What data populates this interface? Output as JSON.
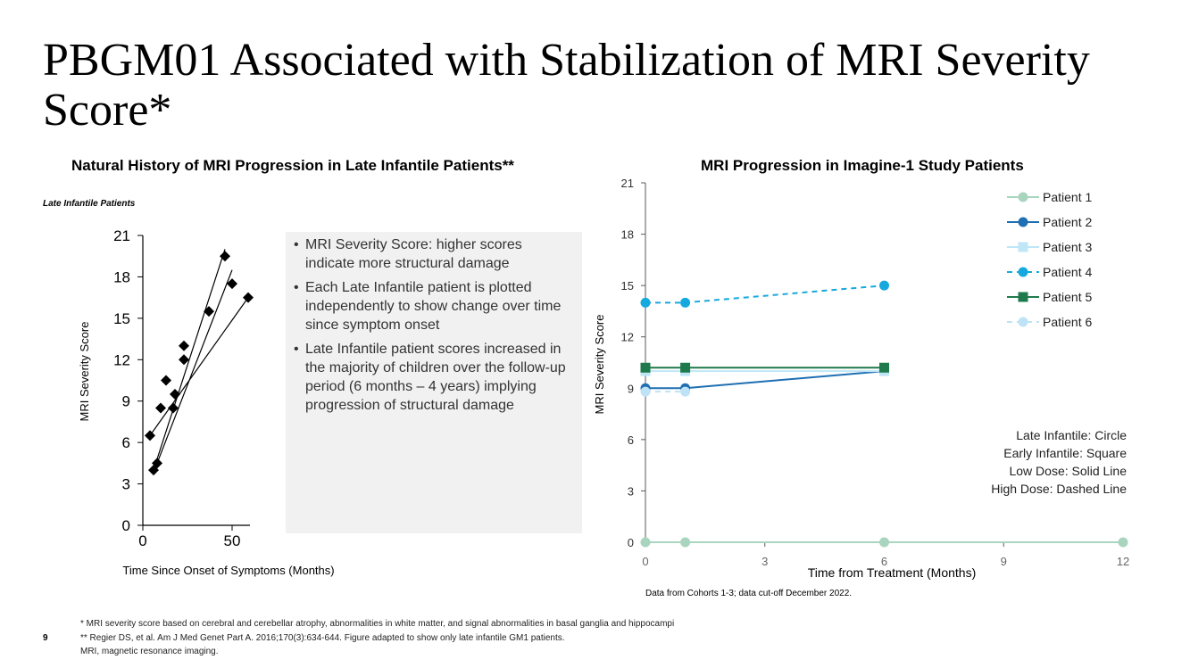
{
  "slide": {
    "title": "PBGM01 Associated with Stabilization of MRI Severity Score*",
    "page_number": "9"
  },
  "left_panel": {
    "title": "Natural History of MRI Progression in Late Infantile Patients**",
    "subtitle": "Late Infantile Patients"
  },
  "bullets": [
    "MRI Severity Score: higher scores indicate more structural damage",
    "Each Late Infantile patient is plotted independently to show change over time since symptom onset",
    "Late Infantile patient scores increased in the majority of children over the follow-up period (6 months – 4 years) implying progression of structural damage"
  ],
  "right_panel": {
    "title": "MRI Progression in Imagine-1 Study Patients",
    "data_note": "Data from Cohorts 1-3; data cut-off December 2022."
  },
  "footnotes": [
    "* MRI severity score based on cerebral and cerebellar atrophy, abnormalities in white matter, and signal abnormalities in basal ganglia and hippocampi",
    "** Regier DS, et al. Am J Med Genet Part A. 2016;170(3):634-644. Figure adapted to show only late infantile GM1 patients.",
    "MRI, magnetic resonance imaging."
  ],
  "chart_data": [
    {
      "type": "scatter",
      "title": "Natural History of MRI Progression in Late Infantile Patients**",
      "xlabel": "Time Since Onset of Symptoms (Months)",
      "ylabel": "MRI Severity Score",
      "xlim": [
        0,
        60
      ],
      "ylim": [
        0,
        21
      ],
      "xticks": [
        0,
        50
      ],
      "yticks": [
        0,
        3,
        6,
        9,
        12,
        15,
        18,
        21
      ],
      "points": [
        {
          "x": 4,
          "y": 6.5
        },
        {
          "x": 6,
          "y": 4
        },
        {
          "x": 8,
          "y": 4.5
        },
        {
          "x": 10,
          "y": 8.5
        },
        {
          "x": 13,
          "y": 10.5
        },
        {
          "x": 17,
          "y": 8.5
        },
        {
          "x": 18,
          "y": 9.5
        },
        {
          "x": 23,
          "y": 12
        },
        {
          "x": 23,
          "y": 13
        },
        {
          "x": 37,
          "y": 15.5
        },
        {
          "x": 46,
          "y": 19.5
        },
        {
          "x": 50,
          "y": 17.5
        },
        {
          "x": 59,
          "y": 16.5
        }
      ],
      "trend_lines": [
        {
          "x1": 4,
          "y1": 6.5,
          "x2": 59,
          "y2": 16.5
        },
        {
          "x1": 6,
          "y1": 4,
          "x2": 46,
          "y2": 20
        },
        {
          "x1": 8,
          "y1": 4.5,
          "x2": 50,
          "y2": 18.5
        }
      ]
    },
    {
      "type": "line",
      "title": "MRI Progression in Imagine-1 Study Patients",
      "xlabel": "Time from Treatment (Months)",
      "ylabel": "MRI Severity Score",
      "xlim": [
        0,
        12
      ],
      "ylim": [
        0,
        21
      ],
      "xticks": [
        0,
        3,
        6,
        9,
        12
      ],
      "yticks": [
        0,
        3,
        6,
        9,
        12,
        15,
        18,
        21
      ],
      "series": [
        {
          "name": "Patient 1",
          "color": "#a9d5bf",
          "marker": "circle",
          "dash": false,
          "x": [
            0,
            1,
            6,
            12
          ],
          "y": [
            0,
            0,
            0,
            0
          ]
        },
        {
          "name": "Patient 2",
          "color": "#1f6fb2",
          "marker": "circle",
          "dash": false,
          "x": [
            0,
            1,
            6
          ],
          "y": [
            9,
            9,
            10
          ]
        },
        {
          "name": "Patient 3",
          "color": "#bfe6f7",
          "marker": "square",
          "dash": false,
          "x": [
            0,
            1,
            6
          ],
          "y": [
            10,
            10,
            10
          ]
        },
        {
          "name": "Patient 4",
          "color": "#16a9dd",
          "marker": "circle",
          "dash": true,
          "x": [
            0,
            1,
            6
          ],
          "y": [
            14,
            14,
            15
          ]
        },
        {
          "name": "Patient 5",
          "color": "#1e7a4c",
          "marker": "square",
          "dash": false,
          "x": [
            0,
            1,
            6
          ],
          "y": [
            10.2,
            10.2,
            10.2
          ]
        },
        {
          "name": "Patient 6",
          "color": "#bfe3f6",
          "marker": "circle",
          "dash": true,
          "x": [
            0,
            1
          ],
          "y": [
            8.8,
            8.8
          ]
        }
      ],
      "annotations": [
        "Late Infantile: Circle",
        "Early Infantile: Square",
        "Low Dose: Solid Line",
        "High Dose: Dashed Line"
      ]
    }
  ]
}
